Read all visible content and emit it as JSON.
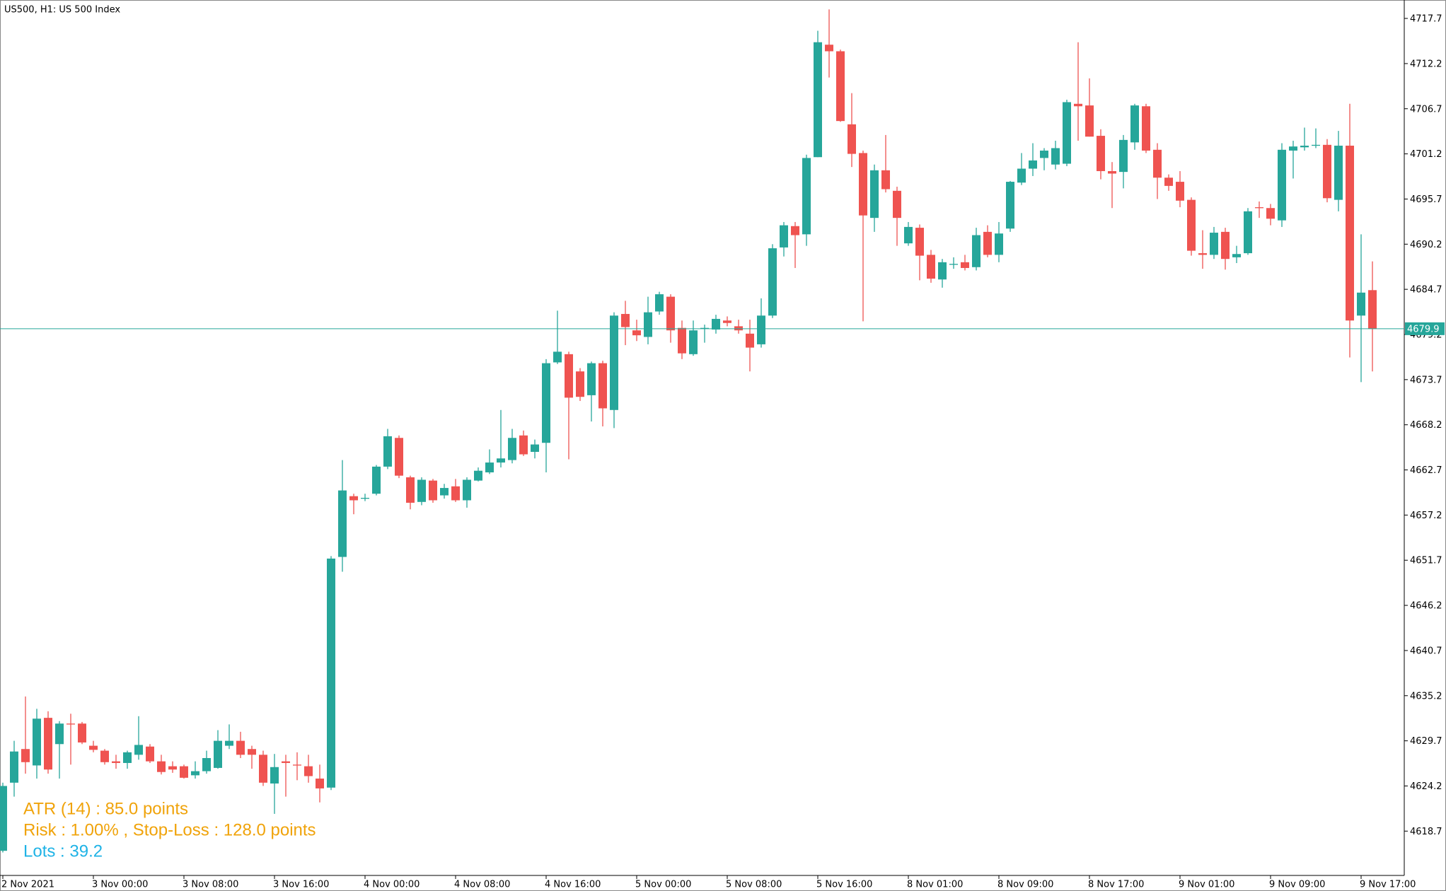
{
  "chart_data": {
    "type": "candlestick",
    "title": "US500, H1:  US 500 Index",
    "annotations": [
      {
        "text": "ATR (14) : 85.0 points",
        "color": "#f0a30a"
      },
      {
        "text": "Risk : 1.00% , Stop-Loss : 128.0 points",
        "color": "#f0a30a"
      },
      {
        "text": "Lots : 39.2",
        "color": "#1fb3e6"
      }
    ],
    "up_color": "#26a69a",
    "down_color": "#ef5350",
    "last_price": 4679.9,
    "categories": [
      "2 Nov 2021",
      null,
      null,
      null,
      null,
      null,
      null,
      null,
      "3 Nov 00:00",
      null,
      null,
      null,
      null,
      null,
      null,
      null,
      "3 Nov 08:00",
      null,
      null,
      null,
      null,
      null,
      null,
      null,
      "3 Nov 16:00",
      null,
      null,
      null,
      null,
      null,
      null,
      null,
      "4 Nov 00:00",
      null,
      null,
      null,
      null,
      null,
      null,
      null,
      "4 Nov 08:00",
      null,
      null,
      null,
      null,
      null,
      null,
      null,
      "4 Nov 16:00",
      null,
      null,
      null,
      null,
      null,
      null,
      null,
      "5 Nov 00:00",
      null,
      null,
      null,
      null,
      null,
      null,
      null,
      "5 Nov 08:00",
      null,
      null,
      null,
      null,
      null,
      null,
      null,
      "5 Nov 16:00",
      null,
      null,
      null,
      null,
      null,
      null,
      null,
      "8 Nov 01:00",
      null,
      null,
      null,
      null,
      null,
      null,
      null,
      "8 Nov 09:00",
      null,
      null,
      null,
      null,
      null,
      null,
      null,
      "8 Nov 17:00",
      null,
      null,
      null,
      null,
      null,
      null,
      null,
      "9 Nov 01:00",
      null,
      null,
      null,
      null,
      null,
      null,
      null,
      "9 Nov 09:00",
      null,
      null,
      null,
      null,
      null,
      null,
      null,
      "9 Nov 17:00",
      null
    ],
    "open": [
      4616.3,
      4624.6,
      4628.7,
      4626.7,
      4632.5,
      4629.3,
      4631.8,
      4631.8,
      4629.1,
      4628.5,
      4627.2,
      4627.0,
      4628.0,
      4629.0,
      4627.2,
      4626.6,
      4626.6,
      4625.5,
      4626.0,
      4626.4,
      4629.1,
      4629.7,
      4628.7,
      4628.0,
      4624.5,
      4627.2,
      4626.8,
      4626.6,
      4625.1,
      4624.0,
      4652.1,
      4659.5,
      4659.2,
      4659.8,
      4663.1,
      4666.6,
      4661.8,
      4658.8,
      4661.4,
      4659.6,
      4660.7,
      4659.0,
      4661.4,
      4662.4,
      4663.6,
      4663.9,
      4666.9,
      4664.9,
      4666.0,
      4675.8,
      4676.8,
      4674.7,
      4671.8,
      4675.7,
      4670.0,
      4681.7,
      4679.7,
      4678.9,
      4682.0,
      4683.8,
      4680.0,
      4676.8,
      4679.9,
      4679.8,
      4680.9,
      4680.2,
      4679.3,
      4678.0,
      4681.5,
      4689.8,
      4692.4,
      4691.4,
      4700.8,
      4714.5,
      4713.7,
      4704.8,
      4701.3,
      4693.4,
      4699.2,
      4696.7,
      4690.3,
      4692.2,
      4688.9,
      4685.9,
      4687.7,
      4688.0,
      4687.4,
      4691.7,
      4688.9,
      4692.1,
      4697.7,
      4699.4,
      4700.7,
      4699.9,
      4700.0,
      4707.3,
      4707.1,
      4703.4,
      4699.1,
      4699.0,
      4702.6,
      4707.0,
      4701.7,
      4698.3,
      4697.8,
      4695.6,
      4689.1,
      4688.9,
      4691.7,
      4688.6,
      4689.1,
      4694.7,
      4694.6,
      4693.1,
      4701.6,
      4702.0,
      4702.2,
      4702.3,
      4695.6,
      4702.2,
      4681.5,
      4684.6
    ],
    "high": [
      4624.6,
      4629.7,
      4635.1,
      4633.6,
      4633.3,
      4632.1,
      4633.0,
      4632.0,
      4629.7,
      4628.7,
      4628.0,
      4628.5,
      4632.7,
      4629.3,
      4628.0,
      4627.2,
      4626.8,
      4627.2,
      4628.5,
      4631.0,
      4631.7,
      4630.8,
      4629.1,
      4628.5,
      4628.1,
      4628.0,
      4628.3,
      4628.0,
      4626.8,
      4652.2,
      4663.9,
      4659.8,
      4659.8,
      4663.3,
      4667.7,
      4666.9,
      4662.0,
      4661.8,
      4661.6,
      4661.0,
      4661.6,
      4661.8,
      4663.0,
      4665.2,
      4670.0,
      4667.7,
      4667.5,
      4666.4,
      4676.2,
      4682.1,
      4677.1,
      4675.1,
      4675.9,
      4676.0,
      4681.9,
      4683.3,
      4681.0,
      4683.8,
      4684.4,
      4684.1,
      4680.9,
      4680.9,
      4680.4,
      4681.6,
      4681.4,
      4681.0,
      4681.0,
      4683.6,
      4690.2,
      4692.9,
      4692.9,
      4701.1,
      4716.2,
      4718.8,
      4713.9,
      4708.6,
      4701.6,
      4699.9,
      4703.5,
      4697.2,
      4692.9,
      4692.6,
      4689.5,
      4688.4,
      4688.6,
      4688.9,
      4692.2,
      4692.5,
      4692.9,
      4697.9,
      4701.3,
      4702.5,
      4701.9,
      4702.8,
      4707.8,
      4714.8,
      4710.4,
      4704.2,
      4700.2,
      4703.5,
      4707.3,
      4707.3,
      4702.5,
      4698.7,
      4699.1,
      4695.9,
      4691.9,
      4692.3,
      4692.2,
      4690.0,
      4694.6,
      4695.4,
      4695.1,
      4702.5,
      4702.8,
      4704.4,
      4704.3,
      4703.0,
      4704.0,
      4707.3,
      4691.4,
      4688.1
    ],
    "low": [
      4616.1,
      4622.9,
      4625.7,
      4625.1,
      4625.7,
      4625.1,
      4626.8,
      4629.3,
      4628.3,
      4626.8,
      4626.3,
      4626.3,
      4627.4,
      4627.0,
      4625.6,
      4625.8,
      4625.1,
      4625.1,
      4625.7,
      4626.3,
      4628.7,
      4627.6,
      4626.3,
      4624.2,
      4620.8,
      4622.9,
      4624.9,
      4624.6,
      4622.2,
      4623.7,
      4650.3,
      4657.3,
      4658.9,
      4659.6,
      4662.8,
      4661.7,
      4657.9,
      4658.4,
      4658.7,
      4659.2,
      4658.8,
      4658.1,
      4661.3,
      4662.2,
      4663.0,
      4663.5,
      4664.4,
      4664.1,
      4662.4,
      4675.6,
      4664.0,
      4671.1,
      4668.6,
      4668.0,
      4667.8,
      4677.9,
      4678.4,
      4678.0,
      4681.6,
      4678.2,
      4676.2,
      4676.6,
      4678.2,
      4679.3,
      4680.2,
      4679.3,
      4674.7,
      4677.6,
      4681.2,
      4688.7,
      4687.3,
      4690.0,
      4700.8,
      4710.5,
      4705.1,
      4699.6,
      4680.8,
      4691.7,
      4696.5,
      4690.0,
      4690.0,
      4685.8,
      4685.5,
      4684.9,
      4687.2,
      4687.0,
      4687.0,
      4688.6,
      4688.0,
      4691.7,
      4697.4,
      4698.5,
      4699.2,
      4699.3,
      4699.7,
      4702.8,
      4703.3,
      4698.1,
      4694.6,
      4697.0,
      4701.7,
      4701.3,
      4695.7,
      4696.7,
      4694.7,
      4688.8,
      4687.2,
      4688.4,
      4687.1,
      4687.9,
      4688.9,
      4693.4,
      4692.5,
      4692.3,
      4698.2,
      4701.6,
      4701.9,
      4695.3,
      4694.2,
      4676.4,
      4673.4,
      4674.7
    ],
    "close": [
      4624.2,
      4628.4,
      4627.1,
      4632.4,
      4626.2,
      4631.8,
      4631.7,
      4629.5,
      4628.6,
      4627.1,
      4627.0,
      4628.3,
      4629.2,
      4627.2,
      4625.9,
      4626.2,
      4625.2,
      4626.0,
      4627.6,
      4629.7,
      4629.7,
      4628.0,
      4628.0,
      4624.6,
      4626.5,
      4627.0,
      4626.7,
      4625.4,
      4623.9,
      4651.9,
      4660.2,
      4659.0,
      4659.3,
      4663.1,
      4666.8,
      4662.0,
      4658.7,
      4661.5,
      4659.0,
      4660.5,
      4659.0,
      4661.5,
      4662.6,
      4663.6,
      4664.1,
      4666.6,
      4664.6,
      4665.8,
      4675.7,
      4677.1,
      4671.5,
      4671.6,
      4675.7,
      4670.2,
      4681.5,
      4680.1,
      4679.1,
      4681.9,
      4684.1,
      4679.7,
      4676.9,
      4679.7,
      4680.0,
      4681.1,
      4680.6,
      4679.7,
      4677.6,
      4681.5,
      4689.7,
      4692.5,
      4691.3,
      4700.7,
      4714.8,
      4713.7,
      4705.2,
      4701.2,
      4693.7,
      4699.2,
      4696.9,
      4693.4,
      4692.3,
      4688.8,
      4686.0,
      4688.0,
      4687.8,
      4687.3,
      4691.3,
      4688.9,
      4691.5,
      4697.8,
      4699.4,
      4700.4,
      4701.6,
      4701.9,
      4707.5,
      4707.0,
      4703.3,
      4699.1,
      4698.8,
      4702.9,
      4707.1,
      4701.6,
      4698.3,
      4697.3,
      4695.5,
      4689.4,
      4688.9,
      4691.6,
      4688.4,
      4689.0,
      4694.2,
      4694.6,
      4693.3,
      4701.7,
      4702.1,
      4702.2,
      4702.3,
      4695.8,
      4702.2,
      4680.9,
      4684.3,
      4679.9
    ],
    "ylim": [
      4613.3,
      4719.6
    ],
    "yticks": [
      4717.7,
      4712.2,
      4706.7,
      4701.2,
      4695.7,
      4690.2,
      4684.7,
      4679.2,
      4673.7,
      4668.2,
      4662.7,
      4657.2,
      4651.7,
      4646.2,
      4640.7,
      4635.2,
      4629.7,
      4624.2,
      4618.7
    ],
    "grid": false
  }
}
